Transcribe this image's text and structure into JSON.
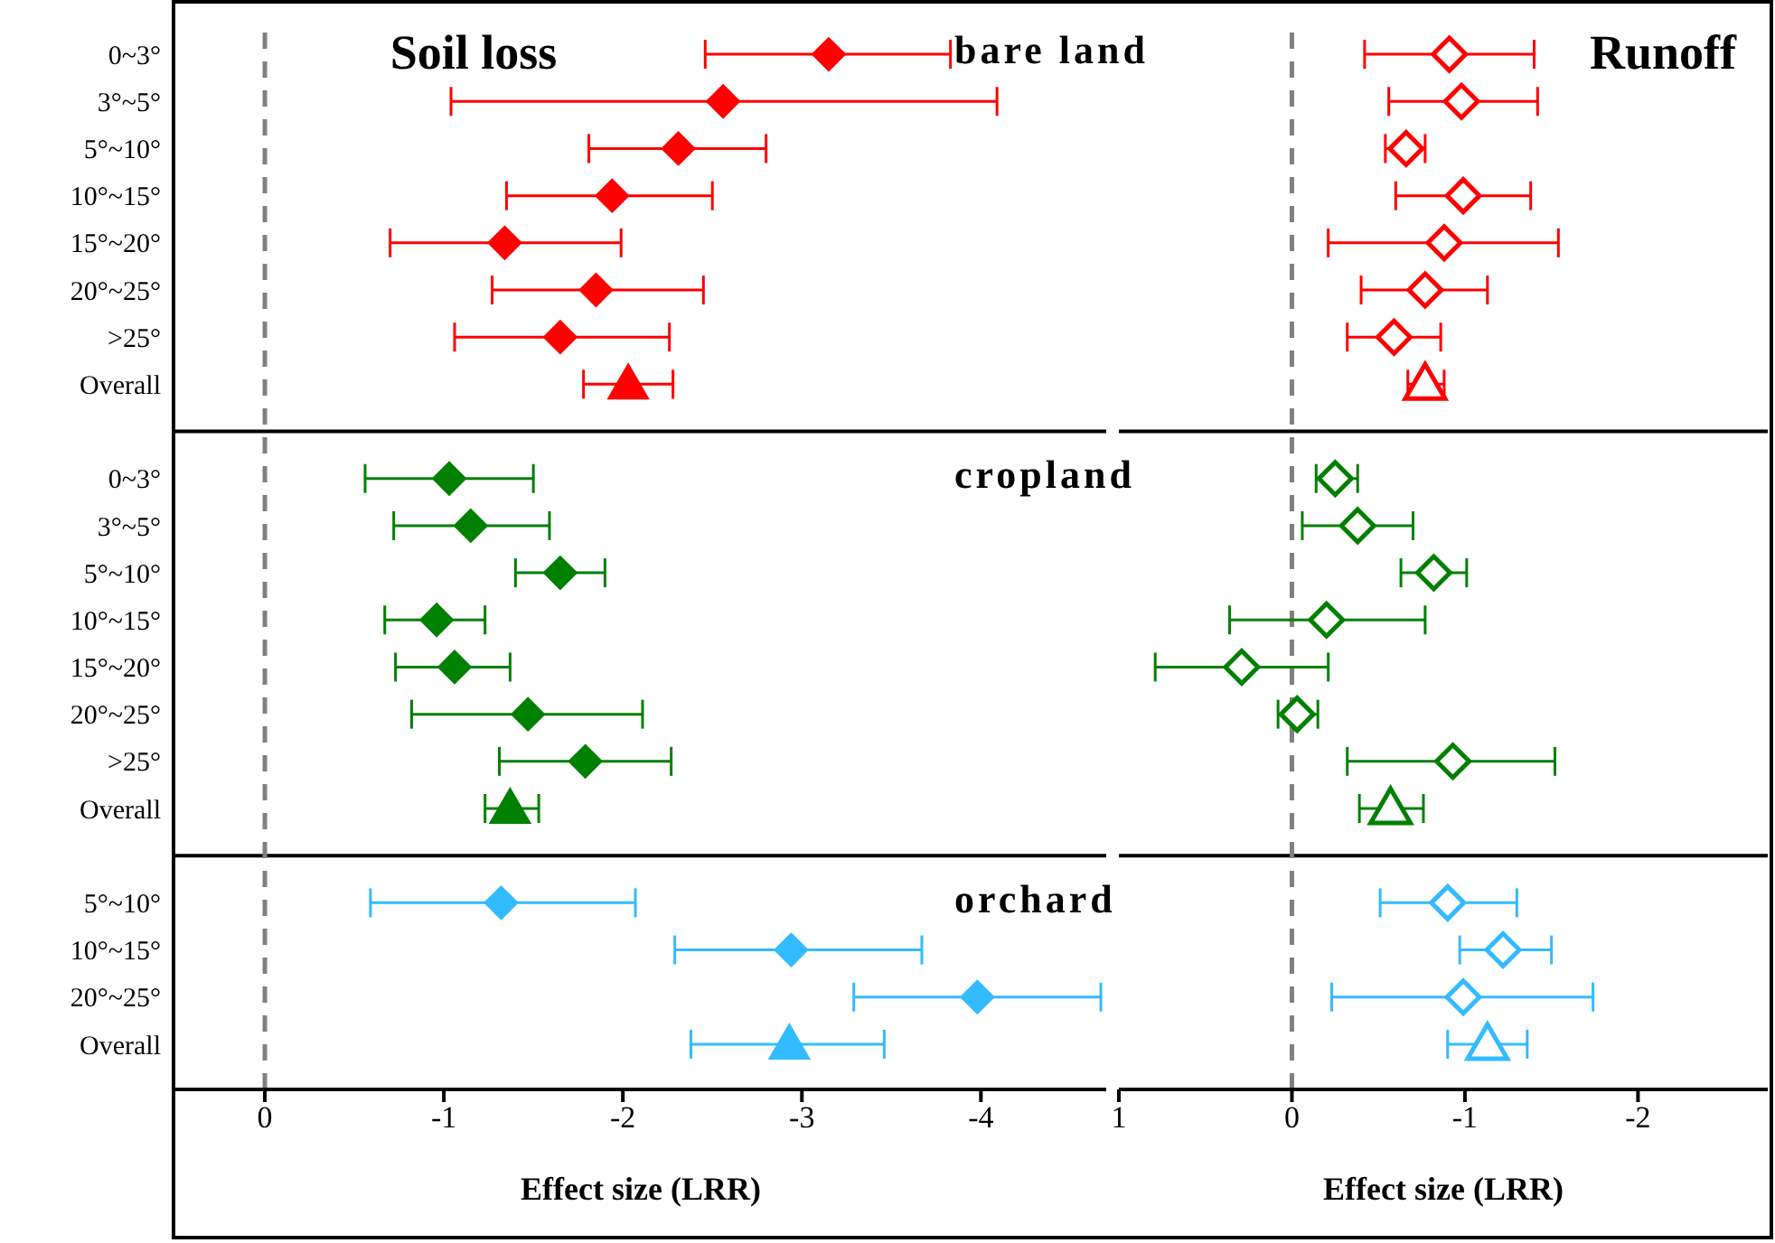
{
  "chart_data": [
    {
      "type": "scatter",
      "title": "Soil loss",
      "xlabel": "Effect size (LRR)",
      "orientation": "horizontal",
      "categories": [
        "0~3°",
        "3°~5°",
        "5°~10°",
        "10°~15°",
        "15°~20°",
        "20°~25°",
        ">25°",
        "Overall",
        null,
        "0~3°",
        "3°~5°",
        "5°~10°",
        "10°~15°",
        "15°~20°",
        "20°~25°",
        ">25°",
        "Overall",
        null,
        "5°~10°",
        "10°~15°",
        "20°~25°",
        "Overall"
      ],
      "xlim": [
        0.5,
        -4.7
      ],
      "xticks": [
        0,
        -1,
        -2,
        -3,
        -4
      ],
      "ref_lines": [
        {
          "axis": "x",
          "value": 0,
          "color": "#808080",
          "line_style": "dashed"
        }
      ],
      "series": [
        {
          "name": "bare land",
          "color": "#ff0000",
          "marker": "diamond",
          "values": [
            -3.15,
            -2.56,
            -2.31,
            -1.94,
            -1.34,
            -1.85,
            -1.65,
            null,
            null,
            null,
            null,
            null,
            null,
            null,
            null,
            null,
            null,
            null,
            null,
            null,
            null,
            null
          ],
          "errors": [
            [
              -3.83,
              -2.46
            ],
            [
              -4.09,
              -1.04
            ],
            [
              -2.8,
              -1.81
            ],
            [
              -2.5,
              -1.35
            ],
            [
              -1.99,
              -0.7
            ],
            [
              -2.45,
              -1.27
            ],
            [
              -2.26,
              -1.06
            ],
            null,
            null,
            null,
            null,
            null,
            null,
            null,
            null,
            null,
            null,
            null,
            null,
            null,
            null,
            null
          ]
        },
        {
          "color": "#ff0000",
          "marker": "triangle",
          "values": [
            null,
            null,
            null,
            null,
            null,
            null,
            null,
            -2.03,
            null,
            null,
            null,
            null,
            null,
            null,
            null,
            null,
            null,
            null,
            null,
            null,
            null,
            null
          ],
          "errors": [
            null,
            null,
            null,
            null,
            null,
            null,
            null,
            [
              -2.28,
              -1.78
            ],
            null,
            null,
            null,
            null,
            null,
            null,
            null,
            null,
            null,
            null,
            null,
            null,
            null,
            null
          ]
        },
        {
          "name": "cropland",
          "color": "#008000",
          "marker": "diamond",
          "values": [
            null,
            null,
            null,
            null,
            null,
            null,
            null,
            null,
            null,
            -1.03,
            -1.15,
            -1.65,
            -0.96,
            -1.06,
            -1.47,
            -1.79,
            null,
            null,
            null,
            null,
            null,
            null
          ],
          "errors": [
            null,
            null,
            null,
            null,
            null,
            null,
            null,
            null,
            null,
            [
              -1.5,
              -0.56
            ],
            [
              -1.59,
              -0.72
            ],
            [
              -1.9,
              -1.4
            ],
            [
              -1.23,
              -0.67
            ],
            [
              -1.37,
              -0.73
            ],
            [
              -2.11,
              -0.82
            ],
            [
              -2.27,
              -1.31
            ],
            null,
            null,
            null,
            null,
            null,
            null
          ]
        },
        {
          "color": "#008000",
          "marker": "triangle",
          "values": [
            null,
            null,
            null,
            null,
            null,
            null,
            null,
            null,
            null,
            null,
            null,
            null,
            null,
            null,
            null,
            null,
            -1.37,
            null,
            null,
            null,
            null,
            null
          ],
          "errors": [
            null,
            null,
            null,
            null,
            null,
            null,
            null,
            null,
            null,
            null,
            null,
            null,
            null,
            null,
            null,
            null,
            [
              -1.53,
              -1.23
            ],
            null,
            null,
            null,
            null,
            null
          ]
        },
        {
          "name": "orchard",
          "color": "#33bbff",
          "marker": "diamond",
          "values": [
            null,
            null,
            null,
            null,
            null,
            null,
            null,
            null,
            null,
            null,
            null,
            null,
            null,
            null,
            null,
            null,
            null,
            null,
            -1.32,
            -2.94,
            -3.98,
            null
          ],
          "errors": [
            null,
            null,
            null,
            null,
            null,
            null,
            null,
            null,
            null,
            null,
            null,
            null,
            null,
            null,
            null,
            null,
            null,
            null,
            [
              -2.07,
              -0.59
            ],
            [
              -3.67,
              -2.29
            ],
            [
              -4.67,
              -3.29
            ],
            null
          ]
        },
        {
          "color": "#33bbff",
          "marker": "triangle",
          "values": [
            null,
            null,
            null,
            null,
            null,
            null,
            null,
            null,
            null,
            null,
            null,
            null,
            null,
            null,
            null,
            null,
            null,
            null,
            null,
            null,
            null,
            -2.93
          ],
          "errors": [
            null,
            null,
            null,
            null,
            null,
            null,
            null,
            null,
            null,
            null,
            null,
            null,
            null,
            null,
            null,
            null,
            null,
            null,
            null,
            null,
            null,
            [
              -3.46,
              -2.38
            ]
          ]
        }
      ]
    },
    {
      "type": "scatter",
      "title": "Runoff",
      "xlabel": "Effect size (LRR)",
      "orientation": "horizontal",
      "tick_labels": "x",
      "xlim": [
        1,
        -2.75
      ],
      "xticks": [
        1,
        0,
        -1,
        -2
      ],
      "ref_lines": [
        {
          "axis": "x",
          "value": 0,
          "color": "#808080",
          "line_style": "dashed"
        }
      ],
      "series": [
        {
          "color": "#ff0000",
          "marker": "diamond",
          "values": [
            -0.91,
            -0.98,
            -0.66,
            -0.99,
            -0.88,
            -0.77,
            -0.59,
            null,
            null,
            null,
            null,
            null,
            null,
            null,
            null,
            null,
            null,
            null,
            null,
            null,
            null,
            null
          ],
          "errors": [
            [
              -1.4,
              -0.42
            ],
            [
              -1.42,
              -0.56
            ],
            [
              -0.77,
              -0.54
            ],
            [
              -1.38,
              -0.6
            ],
            [
              -1.54,
              -0.21
            ],
            [
              -1.13,
              -0.4
            ],
            [
              -0.86,
              -0.32
            ],
            null,
            null,
            null,
            null,
            null,
            null,
            null,
            null,
            null,
            null,
            null,
            null,
            null,
            null,
            null
          ]
        },
        {
          "color": "#ff0000",
          "marker": "triangle",
          "values": [
            null,
            null,
            null,
            null,
            null,
            null,
            null,
            -0.77,
            null,
            null,
            null,
            null,
            null,
            null,
            null,
            null,
            null,
            null,
            null,
            null,
            null,
            null
          ],
          "errors": [
            null,
            null,
            null,
            null,
            null,
            null,
            null,
            [
              -0.88,
              -0.67
            ],
            null,
            null,
            null,
            null,
            null,
            null,
            null,
            null,
            null,
            null,
            null,
            null,
            null,
            null
          ]
        },
        {
          "color": "#008000",
          "marker": "diamond",
          "values": [
            null,
            null,
            null,
            null,
            null,
            null,
            null,
            null,
            null,
            -0.25,
            -0.38,
            -0.82,
            -0.2,
            0.29,
            -0.03,
            -0.93,
            null,
            null,
            null,
            null,
            null,
            null
          ],
          "errors": [
            null,
            null,
            null,
            null,
            null,
            null,
            null,
            null,
            null,
            [
              -0.38,
              -0.14
            ],
            [
              -0.7,
              -0.06
            ],
            [
              -1.01,
              -0.63
            ],
            [
              -0.77,
              0.36
            ],
            [
              -0.21,
              0.79
            ],
            [
              -0.15,
              0.08
            ],
            [
              -1.52,
              -0.32
            ],
            null,
            null,
            null,
            null,
            null,
            null
          ]
        },
        {
          "color": "#008000",
          "marker": "triangle",
          "values": [
            null,
            null,
            null,
            null,
            null,
            null,
            null,
            null,
            null,
            null,
            null,
            null,
            null,
            null,
            null,
            null,
            -0.57,
            null,
            null,
            null,
            null,
            null
          ],
          "errors": [
            null,
            null,
            null,
            null,
            null,
            null,
            null,
            null,
            null,
            null,
            null,
            null,
            null,
            null,
            null,
            null,
            [
              -0.76,
              -0.39
            ],
            null,
            null,
            null,
            null,
            null
          ]
        },
        {
          "color": "#33bbff",
          "marker": "diamond",
          "values": [
            null,
            null,
            null,
            null,
            null,
            null,
            null,
            null,
            null,
            null,
            null,
            null,
            null,
            null,
            null,
            null,
            null,
            null,
            -0.9,
            -1.22,
            -0.99,
            null
          ],
          "errors": [
            null,
            null,
            null,
            null,
            null,
            null,
            null,
            null,
            null,
            null,
            null,
            null,
            null,
            null,
            null,
            null,
            null,
            null,
            [
              -1.3,
              -0.51
            ],
            [
              -1.5,
              -0.97
            ],
            [
              -1.74,
              -0.23
            ],
            null
          ]
        },
        {
          "color": "#33bbff",
          "marker": "triangle",
          "values": [
            null,
            null,
            null,
            null,
            null,
            null,
            null,
            null,
            null,
            null,
            null,
            null,
            null,
            null,
            null,
            null,
            null,
            null,
            null,
            null,
            null,
            -1.13
          ],
          "errors": [
            null,
            null,
            null,
            null,
            null,
            null,
            null,
            null,
            null,
            null,
            null,
            null,
            null,
            null,
            null,
            null,
            null,
            null,
            null,
            null,
            null,
            [
              -1.36,
              -0.9
            ]
          ]
        }
      ]
    }
  ]
}
